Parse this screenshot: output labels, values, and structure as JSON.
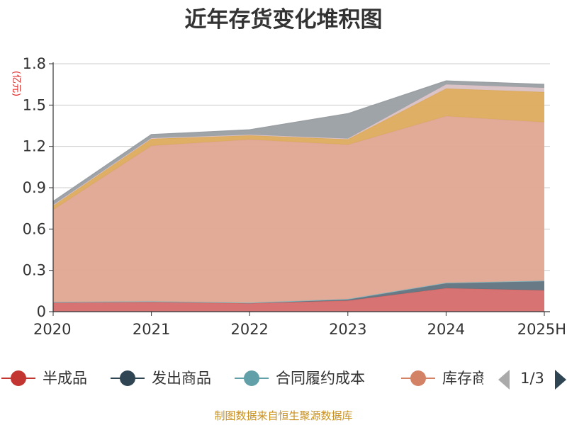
{
  "chart_data": {
    "type": "area",
    "stacked": true,
    "title": "近年存货变化堆积图",
    "unit_label": "(亿元)",
    "categories": [
      "2020",
      "2021",
      "2022",
      "2023",
      "2024",
      "2025H"
    ],
    "ylim": [
      0,
      1.8
    ],
    "yticks": [
      "0",
      "0.3",
      "0.6",
      "0.9",
      "1.2",
      "1.5",
      "1.8"
    ],
    "grid": true,
    "series": [
      {
        "name": "半成品",
        "color": "#d56c6a",
        "values": [
          0.065,
          0.07,
          0.06,
          0.08,
          0.17,
          0.155
        ]
      },
      {
        "name": "发出商品",
        "color": "#5f7380",
        "values": [
          0.005,
          0.005,
          0.005,
          0.012,
          0.04,
          0.07
        ]
      },
      {
        "name": "合同履约成本",
        "color": "#88b9c0",
        "values": [
          0.0,
          0.0,
          0.0,
          0.0,
          0.0,
          0.0
        ]
      },
      {
        "name": "库存商品",
        "color": "#dfa792",
        "values": [
          0.67,
          1.13,
          1.185,
          1.12,
          1.21,
          1.15
        ]
      },
      {
        "name": "",
        "color": "#dcab5c",
        "values": [
          0.03,
          0.05,
          0.03,
          0.04,
          0.2,
          0.22
        ]
      },
      {
        "name": "",
        "color": "#d9c1c5",
        "values": [
          0.005,
          0.005,
          0.005,
          0.005,
          0.03,
          0.03
        ]
      },
      {
        "name": "",
        "color": "#9a9fa4",
        "values": [
          0.025,
          0.025,
          0.035,
          0.18,
          0.025,
          0.025
        ]
      }
    ],
    "legend": {
      "position": "bottom",
      "visible_items": [
        {
          "label": "半成品",
          "color": "#c23531"
        },
        {
          "label": "发出商品",
          "color": "#2f4554"
        },
        {
          "label": "合同履约成本",
          "color": "#61a0a8"
        },
        {
          "label": "库存商",
          "color": "#d48265"
        }
      ],
      "page_indicator": "1/3"
    },
    "source_note": "制图数据来自恒生聚源数据库"
  }
}
